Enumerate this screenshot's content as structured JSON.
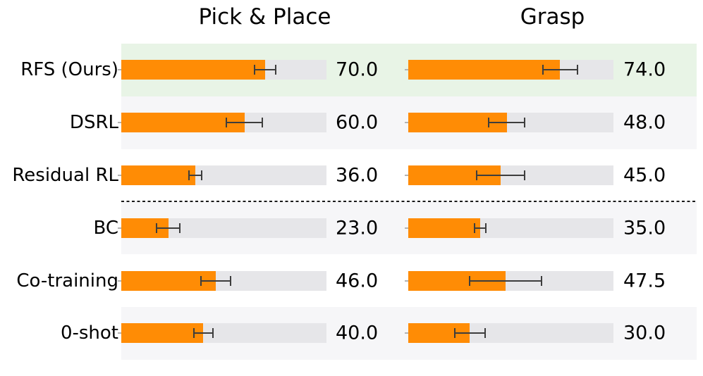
{
  "figure": {
    "background": "#ffffff",
    "bar_color": "#ff8c05",
    "track_color": "#e6e6e9",
    "band_green": "#e8f4e6",
    "band_gray": "#f6f6f8",
    "band_white": "#ffffff",
    "errorbar_color": "#3d3d3d",
    "tick_color": "#b3b3b3",
    "separator_color": "#1a1a1a"
  },
  "chart_data": [
    {
      "type": "bar",
      "orientation": "horizontal",
      "title": "Pick & Place",
      "categories": [
        "RFS (Ours)",
        "DSRL",
        "Residual RL",
        "BC",
        "Co-training",
        "0-shot"
      ],
      "values": [
        70.0,
        60.0,
        36.0,
        23.0,
        46.0,
        40.0
      ],
      "errors": [
        5.5,
        9.2,
        3.5,
        6.0,
        7.6,
        5.0
      ],
      "value_labels": [
        "70.0",
        "60.0",
        "36.0",
        "23.0",
        "46.0",
        "40.0"
      ],
      "xlim": [
        0,
        100
      ],
      "grid": false,
      "legend": "none",
      "highlighted_category": "RFS (Ours)",
      "separator_after_category": "Residual RL"
    },
    {
      "type": "bar",
      "orientation": "horizontal",
      "title": "Grasp",
      "categories": [
        "RFS (Ours)",
        "DSRL",
        "Residual RL",
        "BC",
        "Co-training",
        "0-shot"
      ],
      "values": [
        74.0,
        48.0,
        45.0,
        35.0,
        47.5,
        30.0
      ],
      "errors": [
        8.8,
        9.2,
        12.0,
        3.2,
        17.8,
        7.7
      ],
      "value_labels": [
        "74.0",
        "48.0",
        "45.0",
        "35.0",
        "47.5",
        "30.0"
      ],
      "xlim": [
        0,
        100
      ],
      "grid": false,
      "legend": "none",
      "highlighted_category": "RFS (Ours)",
      "separator_after_category": "Residual RL"
    }
  ],
  "rows": [
    {
      "label": "RFS (Ours)",
      "highlight": true,
      "pick_place": {
        "value": 70.0,
        "error": 5.5,
        "display": "70.0"
      },
      "grasp": {
        "value": 74.0,
        "error": 8.8,
        "display": "74.0"
      }
    },
    {
      "label": "DSRL",
      "highlight": false,
      "pick_place": {
        "value": 60.0,
        "error": 9.2,
        "display": "60.0"
      },
      "grasp": {
        "value": 48.0,
        "error": 9.2,
        "display": "48.0"
      }
    },
    {
      "label": "Residual RL",
      "highlight": false,
      "pick_place": {
        "value": 36.0,
        "error": 3.5,
        "display": "36.0"
      },
      "grasp": {
        "value": 45.0,
        "error": 12.0,
        "display": "45.0"
      }
    },
    {
      "label": "BC",
      "highlight": false,
      "pick_place": {
        "value": 23.0,
        "error": 6.0,
        "display": "23.0"
      },
      "grasp": {
        "value": 35.0,
        "error": 3.2,
        "display": "35.0"
      }
    },
    {
      "label": "Co-training",
      "highlight": false,
      "pick_place": {
        "value": 46.0,
        "error": 7.6,
        "display": "46.0"
      },
      "grasp": {
        "value": 47.5,
        "error": 17.8,
        "display": "47.5"
      }
    },
    {
      "label": "0-shot",
      "highlight": false,
      "pick_place": {
        "value": 40.0,
        "error": 5.0,
        "display": "40.0"
      },
      "grasp": {
        "value": 30.0,
        "error": 7.7,
        "display": "30.0"
      }
    }
  ]
}
